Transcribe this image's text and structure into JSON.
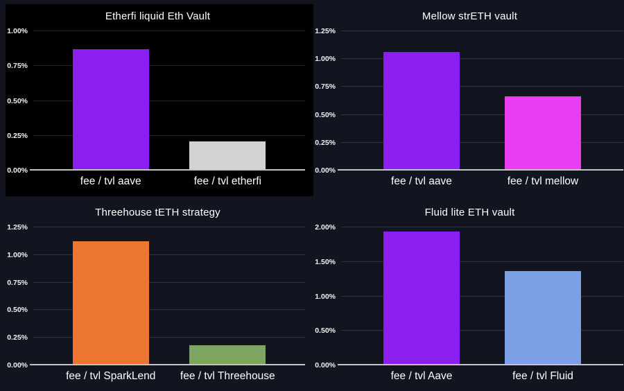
{
  "page": {
    "background_color": "#121520",
    "grid": "2x2 bar chart dashboard",
    "accent_colors": {
      "purple": "#8B1FF0",
      "magenta": "#E93DF2",
      "orange": "#ED7532",
      "green": "#7CA55F",
      "light_blue": "#7C9FE5",
      "light_gray": "#D2D3D2",
      "baseline_gray": "#C2C4C8"
    }
  },
  "chart_data": [
    {
      "type": "bar",
      "title": "Etherfi liquid Eth Vault",
      "categories": [
        "fee / tvl aave",
        "fee / tvl etherfi"
      ],
      "values": [
        0.86,
        0.2
      ],
      "unit": "%",
      "bar_colors": [
        "#8B1FF0",
        "#D2D3D2"
      ],
      "bar_textures": [
        null,
        "dots"
      ],
      "ylim": [
        0,
        1.0
      ],
      "yticks": [
        {
          "value": 1.0,
          "label": "1.00%"
        },
        {
          "value": 0.75,
          "label": "0.75%"
        },
        {
          "value": 0.5,
          "label": "0.50%"
        },
        {
          "value": 0.25,
          "label": "0.25%"
        },
        {
          "value": 0.0,
          "label": "0.00%"
        }
      ],
      "panel_background": "#010101",
      "grid": true,
      "legend": "none"
    },
    {
      "type": "bar",
      "title": "Mellow strETH vault",
      "categories": [
        "fee / tvl aave",
        "fee / tvl mellow"
      ],
      "values": [
        1.05,
        0.65
      ],
      "unit": "%",
      "bar_colors": [
        "#8B1FF0",
        "#E93DF2"
      ],
      "bar_textures": [
        null,
        null
      ],
      "ylim": [
        0,
        1.25
      ],
      "yticks": [
        {
          "value": 1.25,
          "label": "1.25%"
        },
        {
          "value": 1.0,
          "label": "1.00%"
        },
        {
          "value": 0.75,
          "label": "0.75%"
        },
        {
          "value": 0.5,
          "label": "0.50%"
        },
        {
          "value": 0.25,
          "label": "0.25%"
        },
        {
          "value": 0.0,
          "label": "0.00%"
        }
      ],
      "panel_background": null,
      "grid": true,
      "legend": "none"
    },
    {
      "type": "bar",
      "title": "Threehouse tETH strategy",
      "categories": [
        "fee / tvl SparkLend",
        "fee / tvl Threehouse"
      ],
      "values": [
        1.11,
        0.17
      ],
      "unit": "%",
      "bar_colors": [
        "#ED7532",
        "#7CA55F"
      ],
      "bar_textures": [
        null,
        null
      ],
      "ylim": [
        0,
        1.25
      ],
      "yticks": [
        {
          "value": 1.25,
          "label": "1.25%"
        },
        {
          "value": 1.0,
          "label": "1.00%"
        },
        {
          "value": 0.75,
          "label": "0.75%"
        },
        {
          "value": 0.5,
          "label": "0.50%"
        },
        {
          "value": 0.25,
          "label": "0.25%"
        },
        {
          "value": 0.0,
          "label": "0.00%"
        }
      ],
      "panel_background": null,
      "grid": true,
      "legend": "none"
    },
    {
      "type": "bar",
      "title": "Fluid lite ETH vault",
      "categories": [
        "fee / tvl Aave",
        "fee / tvl Fluid"
      ],
      "values": [
        1.92,
        1.35
      ],
      "unit": "%",
      "bar_colors": [
        "#8B1FF0",
        "#7C9FE5"
      ],
      "bar_textures": [
        null,
        null
      ],
      "ylim": [
        0,
        2.0
      ],
      "yticks": [
        {
          "value": 2.0,
          "label": "2.00%"
        },
        {
          "value": 1.5,
          "label": "1.50%"
        },
        {
          "value": 1.0,
          "label": "1.00%"
        },
        {
          "value": 0.5,
          "label": "0.50%"
        },
        {
          "value": 0.0,
          "label": "0.00%"
        }
      ],
      "panel_background": null,
      "grid": true,
      "legend": "none"
    }
  ]
}
